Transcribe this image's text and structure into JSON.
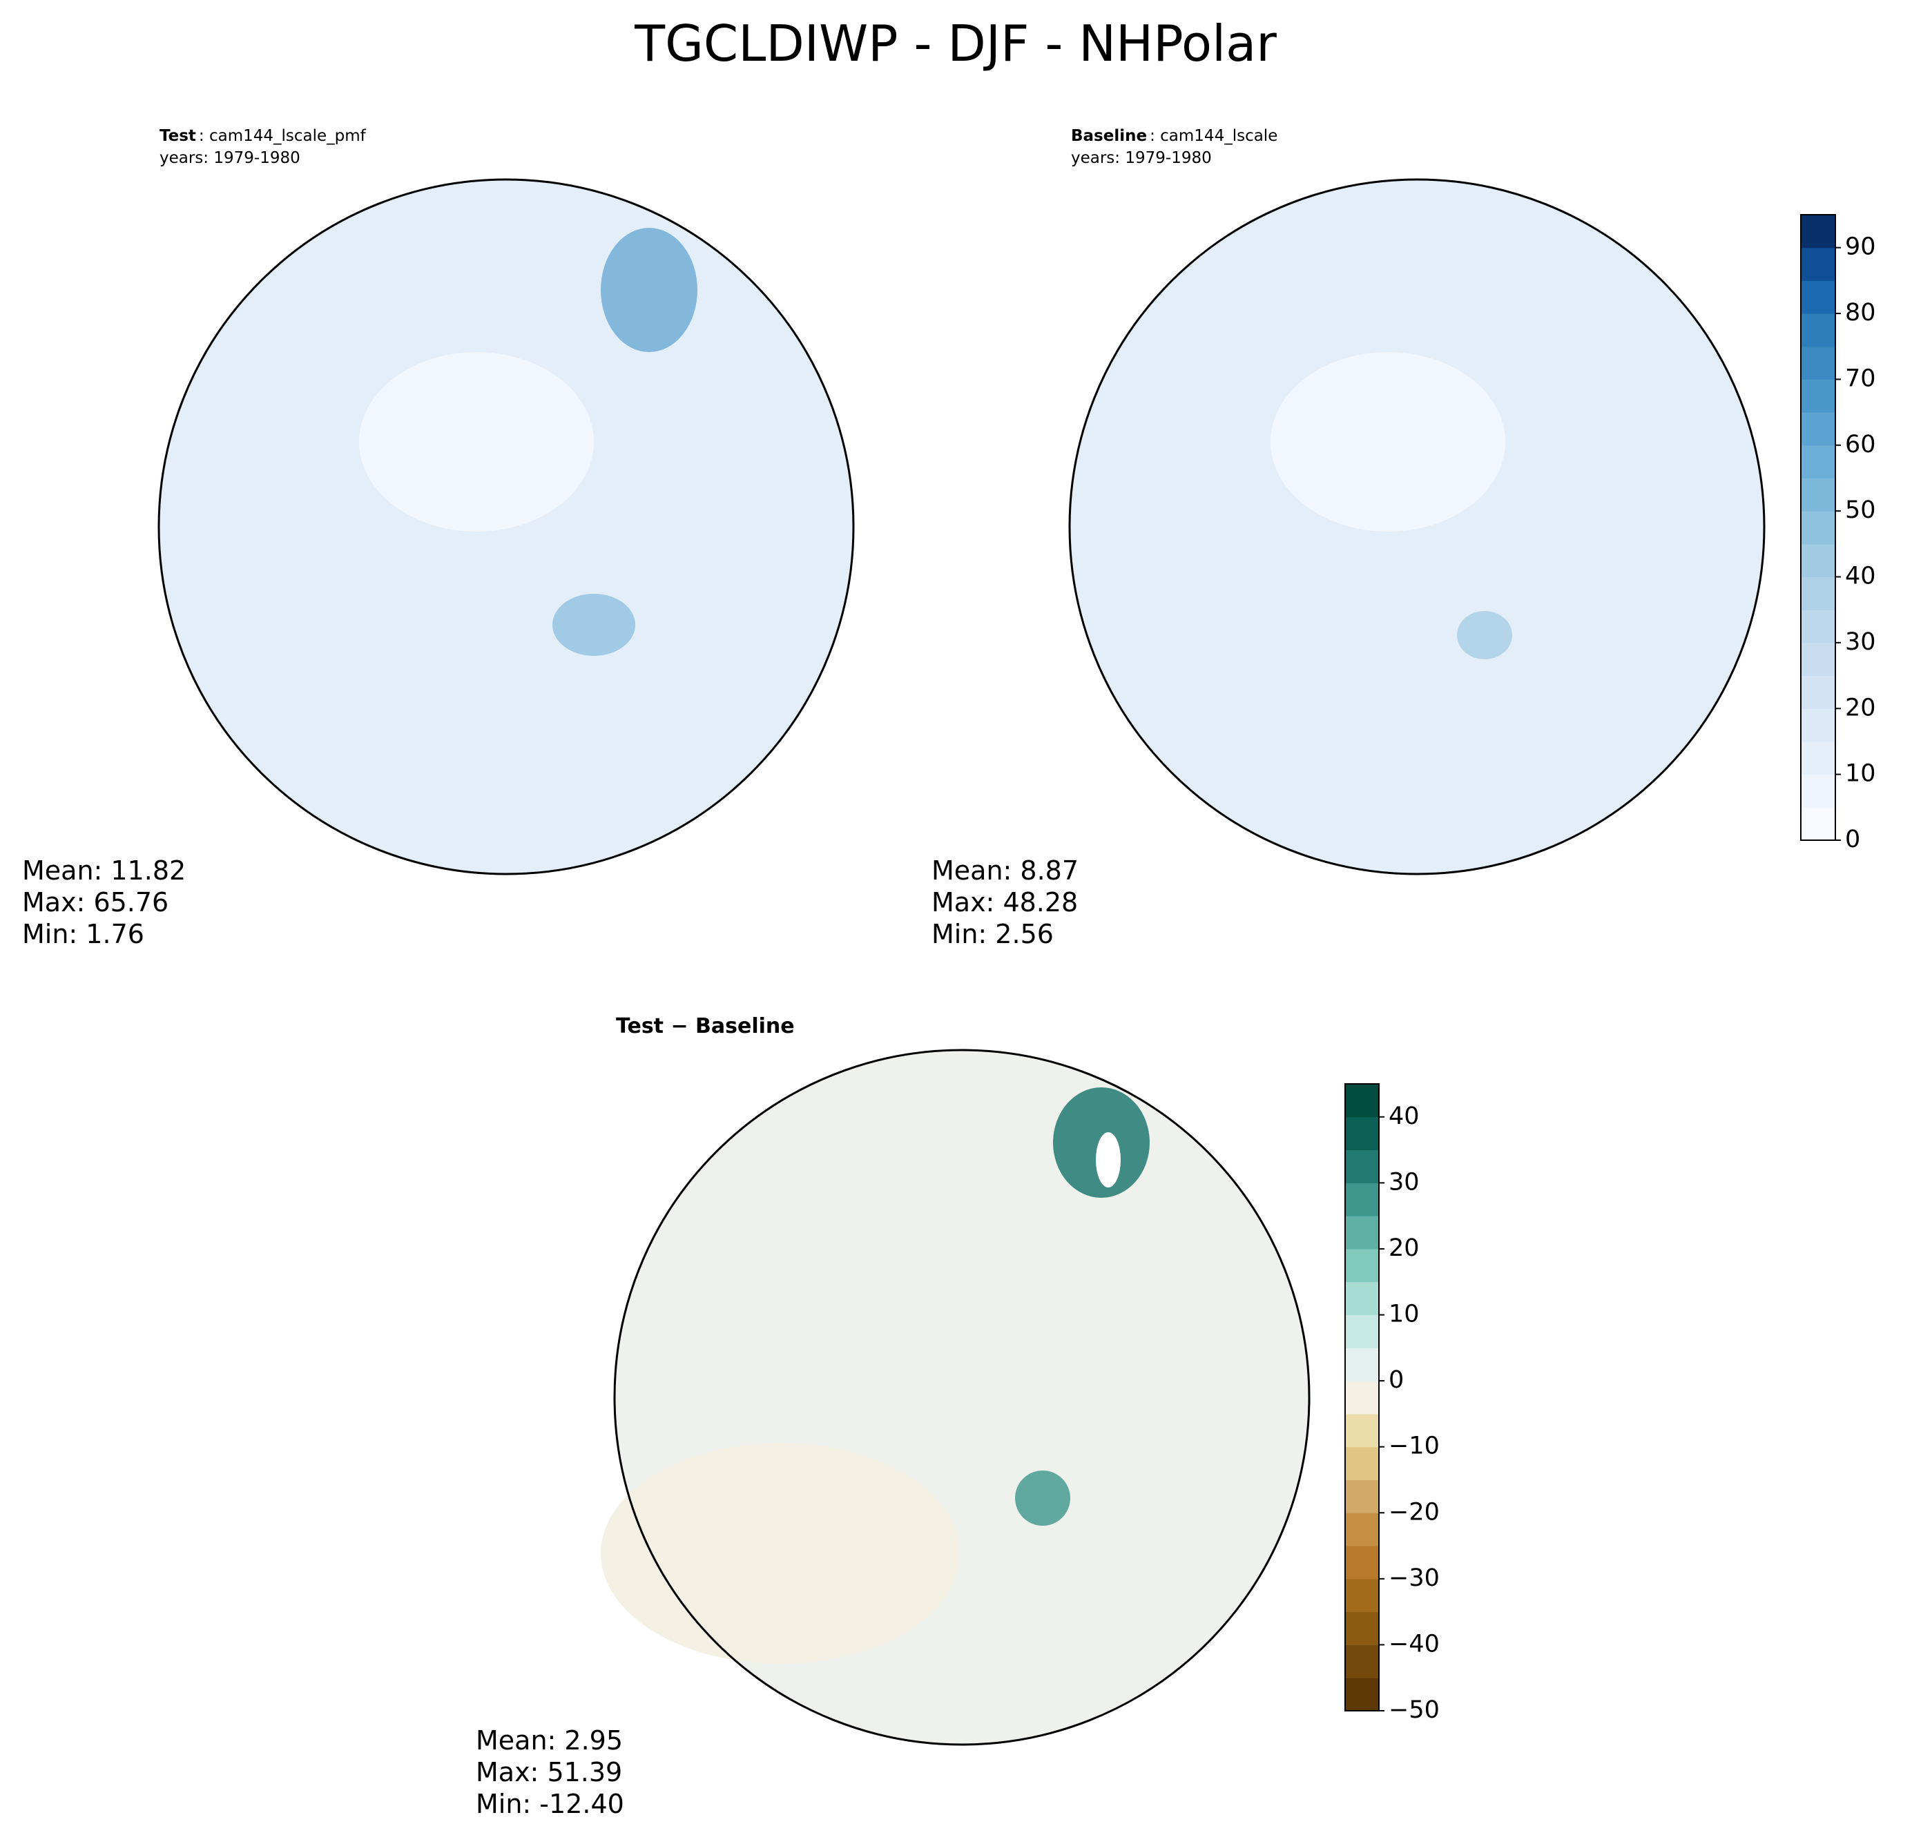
{
  "title": "TGCLDIWP - DJF - NHPolar",
  "panels": [
    {
      "label": "Test",
      "case": ": cam144_lscale_pmf",
      "years": "years: 1979-1980",
      "stats": [
        "Mean: 11.82",
        "Max: 65.76",
        "Min:  1.76"
      ]
    },
    {
      "label": "Baseline",
      "case": ": cam144_lscale",
      "years": "years: 1979-1980",
      "stats": [
        "Mean:  8.87",
        "Max: 48.28",
        "Min:  2.56"
      ]
    },
    {
      "label": "Test − Baseline",
      "stats": [
        "Mean:  2.95",
        "Max: 51.39",
        "Min: -12.40"
      ]
    }
  ],
  "colorbars": [
    {
      "lim": [
        0,
        95
      ],
      "levels": [
        0,
        5,
        10,
        15,
        20,
        25,
        30,
        35,
        40,
        45,
        50,
        55,
        60,
        65,
        70,
        75,
        80,
        85,
        90,
        95
      ],
      "colors": [
        "#f7fbff",
        "#eef5fc",
        "#e5eff9",
        "#dce9f6",
        "#d3e3f3",
        "#c9ddf0",
        "#bdd7ec",
        "#afd1e7",
        "#a0cbe2",
        "#8fc2de",
        "#7db8da",
        "#6baed6",
        "#5ba3d0",
        "#4a98c9",
        "#3b8bc2",
        "#2e7ebc",
        "#1c6aaf",
        "#0e4f95",
        "#08306b"
      ],
      "ticks": [
        0,
        10,
        20,
        30,
        40,
        50,
        60,
        70,
        80,
        90
      ]
    },
    {
      "lim": [
        -50,
        45
      ],
      "levels": [
        -50,
        -45,
        -40,
        -35,
        -30,
        -25,
        -20,
        -15,
        -10,
        -5,
        0,
        5,
        10,
        15,
        20,
        25,
        30,
        35,
        40,
        45
      ],
      "colors": [
        "#5e3806",
        "#744a0c",
        "#8a5a10",
        "#a26b1b",
        "#b67a2a",
        "#c48f42",
        "#d3aa65",
        "#e1c585",
        "#ecdcaa",
        "#f4f0e4",
        "#e4f0ee",
        "#c8e9e3",
        "#a8ddd4",
        "#80c9bc",
        "#5eb0a5",
        "#3d968c",
        "#217a72",
        "#0c6157",
        "#004c3f"
      ],
      "ticks": [
        {
          "value": -50,
          "label": "−50"
        },
        {
          "value": -40,
          "label": "−40"
        },
        {
          "value": -30,
          "label": "−30"
        },
        {
          "value": -20,
          "label": "−20"
        },
        {
          "value": -10,
          "label": "−10"
        },
        0,
        10,
        20,
        30,
        40
      ]
    }
  ]
}
